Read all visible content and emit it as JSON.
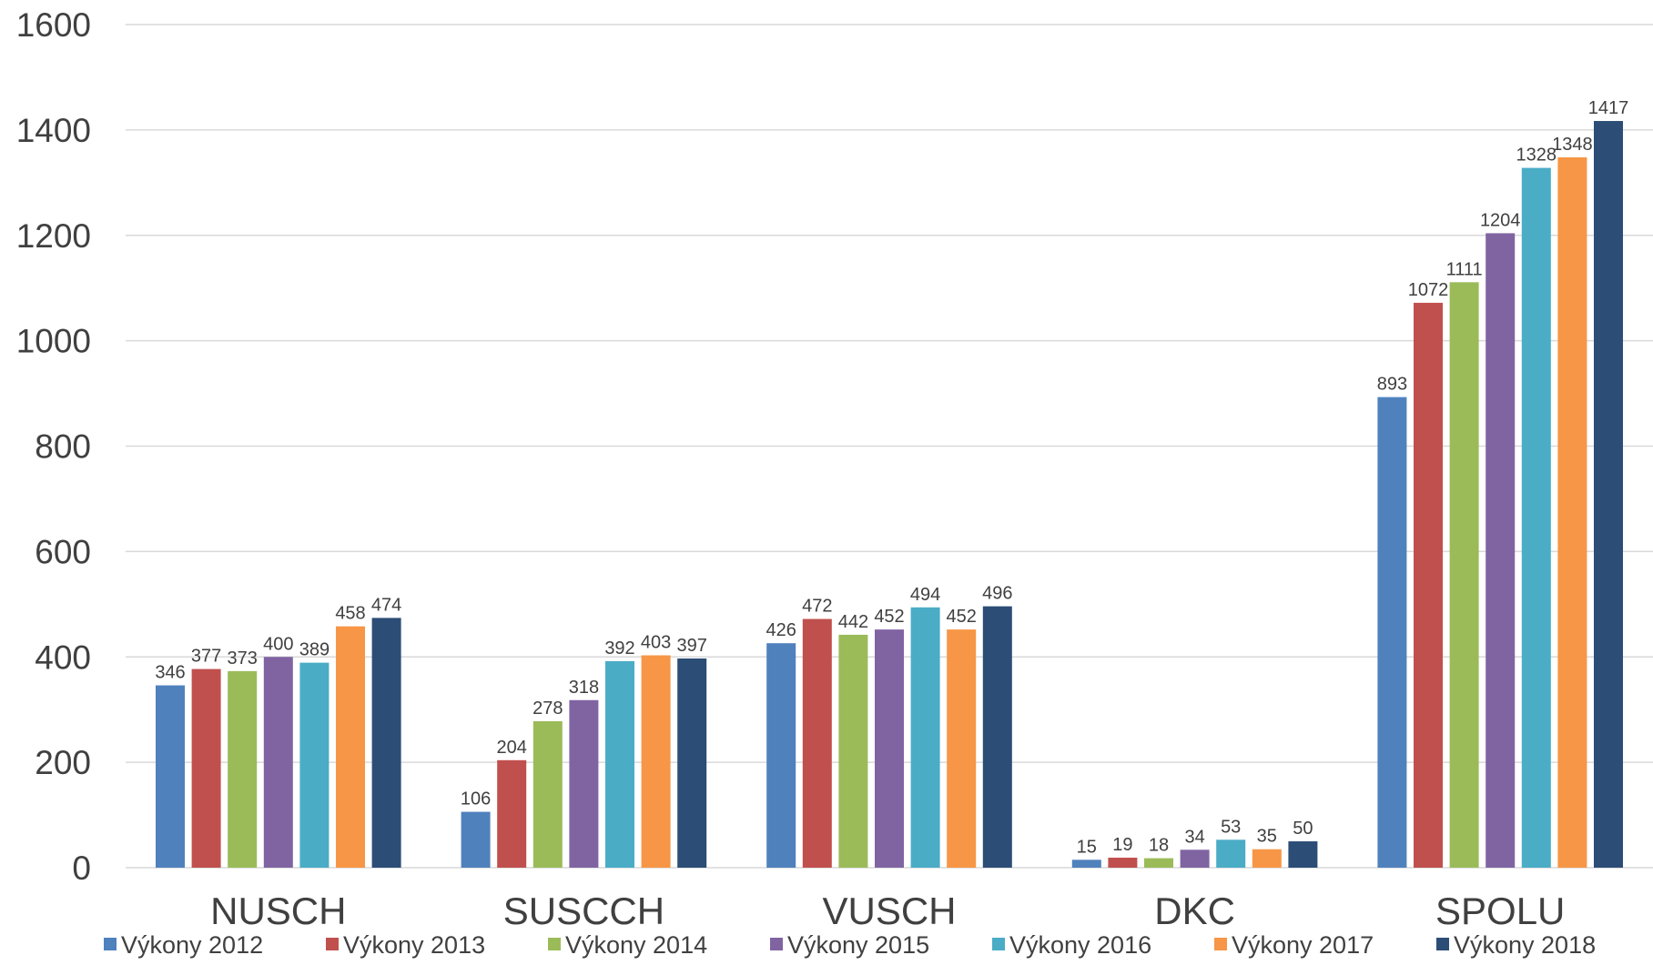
{
  "chart_data": {
    "type": "bar",
    "title": "",
    "xlabel": "",
    "ylabel": "",
    "categories": [
      "NUSCH",
      "SUSCCH",
      "VUSCH",
      "DKC",
      "SPOLU"
    ],
    "ylim": [
      0,
      1600
    ],
    "yticks": [
      "0",
      "200",
      "400",
      "600",
      "800",
      "1000",
      "1200",
      "1400",
      "1600"
    ],
    "grid": "horizontal",
    "legend_position": "bottom",
    "series": [
      {
        "name": "Výkony 2012",
        "color": "#4f81bd",
        "values": [
          346,
          106,
          426,
          15,
          893
        ]
      },
      {
        "name": "Výkony 2013",
        "color": "#c0504d",
        "values": [
          377,
          204,
          472,
          19,
          1072
        ]
      },
      {
        "name": "Výkony 2014",
        "color": "#9bbb59",
        "values": [
          373,
          278,
          442,
          18,
          1111
        ]
      },
      {
        "name": "Výkony 2015",
        "color": "#8064a2",
        "values": [
          400,
          318,
          452,
          34,
          1204
        ]
      },
      {
        "name": "Výkony 2016",
        "color": "#4bacc6",
        "values": [
          389,
          392,
          494,
          53,
          1328
        ]
      },
      {
        "name": "Výkony 2017",
        "color": "#f79646",
        "values": [
          458,
          403,
          452,
          35,
          1348
        ]
      },
      {
        "name": "Výkony 2018",
        "color": "#2c4d75",
        "values": [
          474,
          397,
          496,
          50,
          1417
        ]
      }
    ]
  }
}
